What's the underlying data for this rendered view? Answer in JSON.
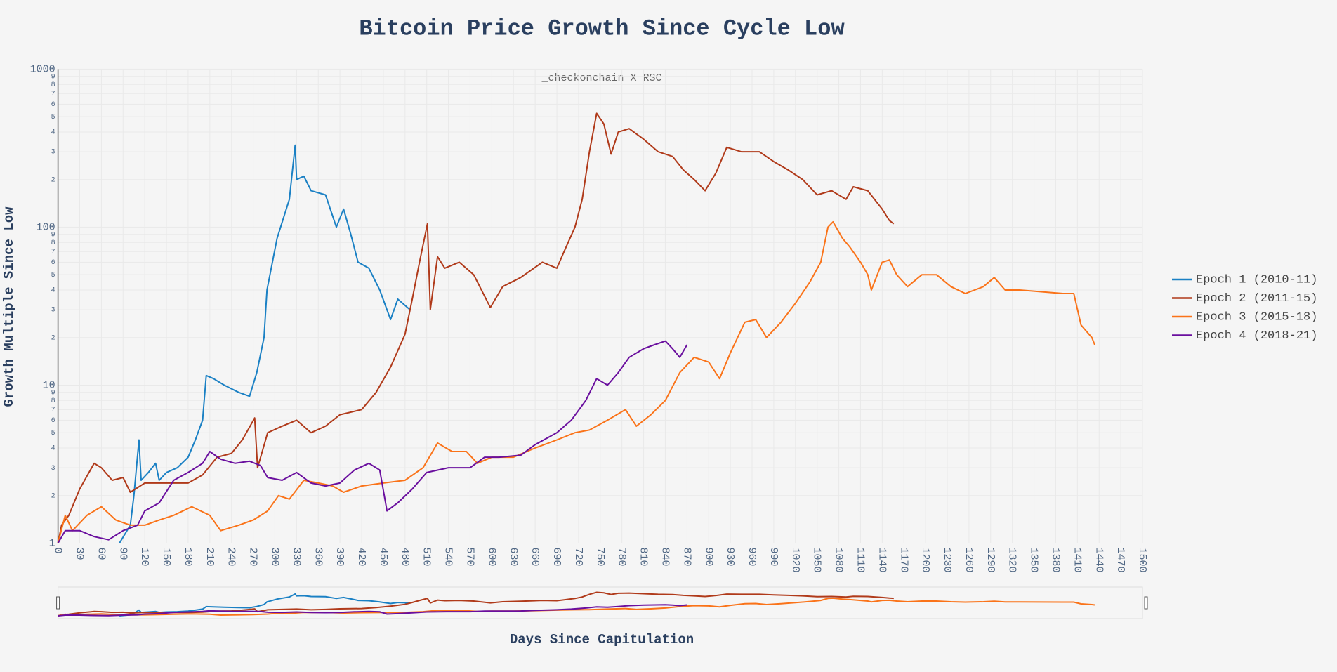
{
  "chart_data": {
    "type": "line",
    "title": "Bitcoin Price Growth Since Cycle Low",
    "annotation": "_checkonchain X RSC",
    "x_label": "Days Since Capitulation",
    "y_label": "Growth Multiple Since Low",
    "y_scale": "log",
    "grid": true,
    "legend": "right",
    "range_slider": true,
    "xlim": [
      0,
      1500
    ],
    "xticks": [
      0,
      30,
      60,
      90,
      120,
      150,
      180,
      210,
      240,
      270,
      300,
      330,
      360,
      390,
      420,
      450,
      480,
      510,
      540,
      570,
      600,
      630,
      660,
      690,
      720,
      750,
      780,
      810,
      840,
      870,
      900,
      930,
      960,
      990,
      1020,
      1050,
      1080,
      1110,
      1140,
      1170,
      1200,
      1230,
      1260,
      1290,
      1320,
      1350,
      1380,
      1410,
      1440,
      1470,
      1500
    ],
    "ylim": [
      1,
      1000
    ],
    "yticks": [
      1,
      2,
      3,
      4,
      5,
      6,
      7,
      8,
      9,
      10,
      {
        "value": 20,
        "label": "2"
      },
      {
        "value": 30,
        "label": "3"
      },
      {
        "value": 40,
        "label": "4"
      },
      {
        "value": 50,
        "label": "5"
      },
      {
        "value": 60,
        "label": "6"
      },
      {
        "value": 70,
        "label": "7"
      },
      {
        "value": 80,
        "label": "8"
      },
      {
        "value": 90,
        "label": "9"
      },
      100,
      {
        "value": 200,
        "label": "2"
      },
      {
        "value": 300,
        "label": "3"
      },
      {
        "value": 400,
        "label": "4"
      },
      {
        "value": 500,
        "label": "5"
      },
      {
        "value": 600,
        "label": "6"
      },
      {
        "value": 700,
        "label": "7"
      },
      {
        "value": 800,
        "label": "8"
      },
      {
        "value": 900,
        "label": "9"
      },
      1000
    ],
    "series": [
      {
        "name": "Epoch 1 (2010-11)",
        "color": "#1a80c4",
        "x": [
          85,
          100,
          105,
          112,
          115,
          125,
          135,
          140,
          150,
          165,
          180,
          190,
          200,
          205,
          215,
          230,
          250,
          265,
          275,
          285,
          289,
          303,
          320,
          328,
          330,
          340,
          350,
          370,
          385,
          395,
          405,
          415,
          430,
          445,
          460,
          470,
          487
        ],
        "values": [
          1,
          1.3,
          2,
          4.5,
          2.5,
          2.8,
          3.2,
          2.5,
          2.8,
          3,
          3.5,
          4.5,
          6,
          11.5,
          11,
          10,
          9,
          8.5,
          12,
          20,
          40,
          85,
          150,
          330,
          200,
          210,
          170,
          160,
          100,
          130,
          90,
          60,
          55,
          40,
          26,
          35,
          30
        ]
      },
      {
        "name": "Epoch 2 (2011-15)",
        "color": "#b03a1a",
        "x": [
          0,
          5,
          15,
          30,
          50,
          60,
          75,
          90,
          100,
          120,
          150,
          180,
          200,
          220,
          240,
          255,
          272,
          276,
          290,
          310,
          330,
          350,
          370,
          390,
          420,
          440,
          460,
          480,
          490,
          500,
          511,
          515,
          525,
          535,
          555,
          575,
          598,
          615,
          640,
          670,
          690,
          700,
          715,
          725,
          735,
          745,
          755,
          765,
          775,
          790,
          810,
          830,
          850,
          865,
          880,
          895,
          910,
          925,
          945,
          970,
          990,
          1010,
          1030,
          1050,
          1070,
          1090,
          1100,
          1120,
          1140,
          1150,
          1156
        ],
        "values": [
          1,
          1.3,
          1.5,
          2.2,
          3.2,
          3,
          2.5,
          2.6,
          2.1,
          2.4,
          2.4,
          2.4,
          2.7,
          3.5,
          3.7,
          4.5,
          6.2,
          3,
          5,
          5.5,
          6,
          5,
          5.5,
          6.5,
          7,
          9,
          13,
          21,
          35,
          60,
          105,
          30,
          65,
          55,
          60,
          50,
          31,
          42,
          48,
          60,
          55,
          70,
          100,
          150,
          300,
          525,
          450,
          290,
          400,
          420,
          360,
          300,
          280,
          230,
          200,
          170,
          220,
          320,
          300,
          300,
          260,
          230,
          200,
          160,
          170,
          150,
          180,
          170,
          130,
          110,
          105
        ]
      },
      {
        "name": "Epoch 3 (2015-18)",
        "color": "#fa7319",
        "x": [
          0,
          10,
          20,
          40,
          60,
          80,
          100,
          120,
          140,
          160,
          185,
          210,
          225,
          250,
          270,
          290,
          305,
          320,
          340,
          360,
          380,
          395,
          420,
          450,
          480,
          505,
          525,
          545,
          565,
          580,
          600,
          630,
          660,
          690,
          715,
          735,
          760,
          785,
          800,
          820,
          840,
          860,
          880,
          900,
          915,
          930,
          950,
          965,
          980,
          1000,
          1020,
          1040,
          1055,
          1065,
          1072,
          1085,
          1095,
          1110,
          1120,
          1125,
          1140,
          1150,
          1160,
          1175,
          1195,
          1215,
          1235,
          1255,
          1280,
          1295,
          1310,
          1330,
          1360,
          1390,
          1405,
          1415,
          1430,
          1434
        ],
        "values": [
          1,
          1.5,
          1.2,
          1.5,
          1.7,
          1.4,
          1.3,
          1.3,
          1.4,
          1.5,
          1.7,
          1.5,
          1.2,
          1.3,
          1.4,
          1.6,
          2,
          1.9,
          2.5,
          2.4,
          2.3,
          2.1,
          2.3,
          2.4,
          2.5,
          3,
          4.3,
          3.8,
          3.8,
          3.2,
          3.5,
          3.5,
          4,
          4.5,
          5,
          5.2,
          6,
          7,
          5.5,
          6.5,
          8,
          12,
          15,
          14,
          11,
          16,
          25,
          26,
          20,
          25,
          33,
          45,
          60,
          100,
          108,
          85,
          75,
          60,
          50,
          40,
          60,
          62,
          50,
          42,
          50,
          50,
          42,
          38,
          42,
          48,
          40,
          40,
          39,
          38,
          38,
          24,
          20,
          18
        ]
      },
      {
        "name": "Epoch 4 (2018-21)",
        "color": "#6a0f9e",
        "x": [
          0,
          10,
          30,
          50,
          70,
          90,
          110,
          120,
          140,
          160,
          180,
          200,
          210,
          225,
          245,
          265,
          280,
          290,
          310,
          330,
          350,
          370,
          390,
          410,
          430,
          445,
          455,
          470,
          490,
          510,
          540,
          570,
          590,
          610,
          640,
          660,
          690,
          710,
          730,
          745,
          760,
          775,
          790,
          810,
          825,
          840,
          850,
          860,
          870
        ],
        "values": [
          1,
          1.2,
          1.2,
          1.1,
          1.05,
          1.2,
          1.3,
          1.6,
          1.8,
          2.5,
          2.8,
          3.2,
          3.8,
          3.4,
          3.2,
          3.3,
          3.1,
          2.6,
          2.5,
          2.8,
          2.4,
          2.3,
          2.4,
          2.9,
          3.2,
          2.9,
          1.6,
          1.8,
          2.2,
          2.8,
          3,
          3,
          3.5,
          3.5,
          3.6,
          4.2,
          5,
          6,
          8,
          11,
          10,
          12,
          15,
          17,
          18,
          19,
          17,
          15,
          18
        ]
      }
    ]
  }
}
